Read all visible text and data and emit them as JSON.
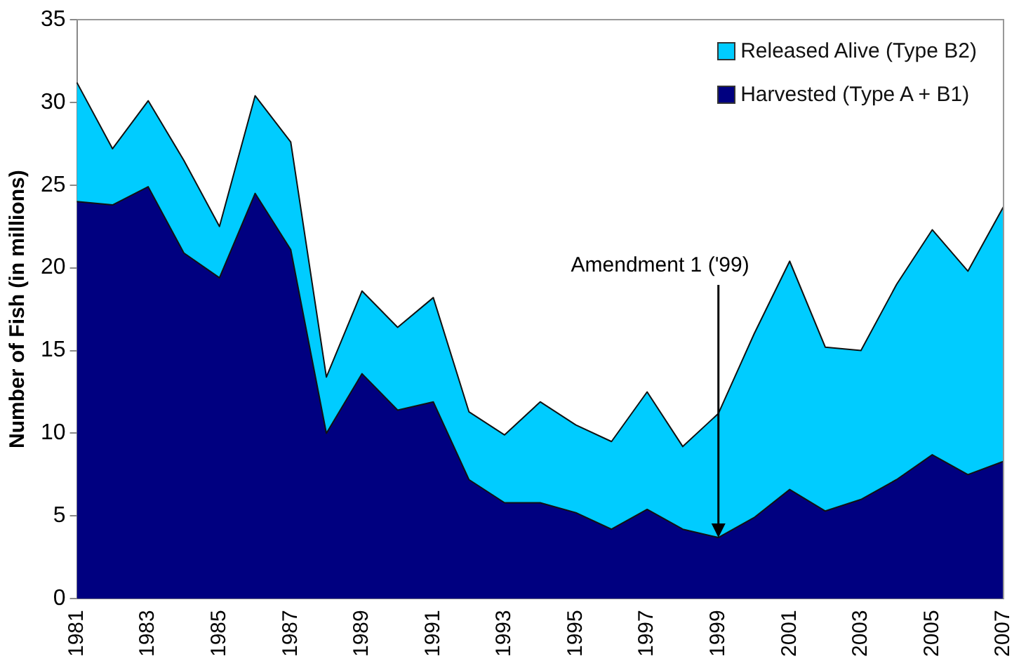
{
  "chart_data": {
    "type": "area",
    "stacked": true,
    "ylabel": "Number of Fish (in millions)",
    "categories": [
      "1981",
      null,
      "1983",
      null,
      "1985",
      null,
      "1987",
      null,
      "1989",
      null,
      "1991",
      null,
      "1993",
      null,
      "1995",
      null,
      "1997",
      null,
      "1999",
      null,
      "2001",
      null,
      "2003",
      null,
      "2005",
      null,
      "2007"
    ],
    "series": [
      {
        "name": "Harvested (Type A + B1)",
        "color": "#000080",
        "values": [
          24.0,
          23.8,
          24.9,
          20.9,
          19.4,
          24.5,
          21.1,
          10.0,
          13.6,
          11.4,
          11.9,
          7.2,
          5.8,
          5.8,
          5.2,
          4.2,
          5.4,
          4.2,
          3.7,
          4.9,
          6.6,
          5.3,
          6.0,
          7.2,
          8.7,
          7.5,
          8.3
        ]
      },
      {
        "name": "Released Alive (Type B2)",
        "color": "#00ccff",
        "values": [
          7.2,
          3.4,
          5.2,
          5.6,
          3.1,
          5.9,
          6.5,
          3.4,
          5.0,
          5.0,
          6.3,
          4.1,
          4.1,
          6.1,
          5.3,
          5.3,
          7.1,
          5.0,
          7.5,
          11.1,
          13.8,
          9.9,
          9.0,
          11.8,
          13.6,
          12.3,
          15.4
        ]
      }
    ],
    "ylim": [
      0,
      35
    ],
    "yticks": [
      0,
      5,
      10,
      15,
      20,
      25,
      30,
      35
    ],
    "grid": false,
    "legend": "top right",
    "annotations": [
      {
        "text": "Amendment 1 ('99)",
        "x": "1999",
        "y": 3.7
      }
    ]
  }
}
